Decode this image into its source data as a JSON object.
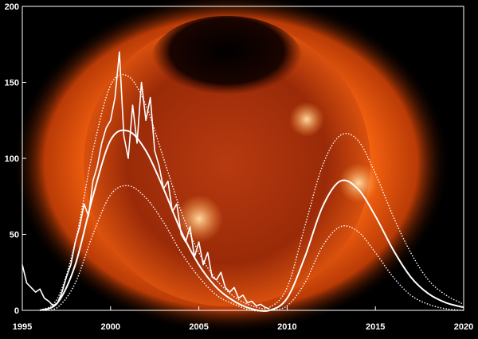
{
  "chart_data": {
    "type": "line",
    "xlim": [
      1995,
      2020
    ],
    "ylim": [
      0,
      200
    ],
    "xticks": [
      1995,
      2000,
      2005,
      2010,
      2015,
      2020
    ],
    "yticks": [
      0,
      50,
      100,
      150,
      200
    ],
    "series": [
      {
        "color": "#ffffff",
        "style": "solid",
        "smooth": false,
        "width": 1.6,
        "x": [
          1995,
          1995.25,
          1995.5,
          1995.75,
          1996,
          1996.25,
          1996.5,
          1996.75,
          1997,
          1997.25,
          1997.5,
          1997.75,
          1998,
          1998.25,
          1998.5,
          1998.75,
          1999,
          1999.25,
          1999.5,
          1999.75,
          2000,
          2000.25,
          2000.5,
          2000.75,
          2001,
          2001.25,
          2001.5,
          2001.75,
          2002,
          2002.25,
          2002.5,
          2002.75,
          2003,
          2003.25,
          2003.5,
          2003.75,
          2004,
          2004.25,
          2004.5,
          2004.75,
          2005,
          2005.25,
          2005.5,
          2005.75,
          2006,
          2006.25,
          2006.5,
          2006.75,
          2007,
          2007.25,
          2007.5,
          2007.75,
          2008,
          2008.25,
          2008.5,
          2008.75,
          2009
        ],
        "values": [
          30,
          18,
          15,
          12,
          14,
          8,
          6,
          3,
          5,
          12,
          22,
          30,
          45,
          55,
          70,
          62,
          85,
          95,
          110,
          120,
          125,
          140,
          170,
          115,
          100,
          135,
          110,
          150,
          125,
          140,
          105,
          95,
          80,
          85,
          65,
          70,
          50,
          45,
          55,
          35,
          45,
          30,
          38,
          22,
          20,
          25,
          15,
          12,
          15,
          8,
          10,
          5,
          6,
          3,
          4,
          2,
          1
        ]
      },
      {
        "color": "#ffffff",
        "style": "solid",
        "smooth": true,
        "width": 2,
        "x": [
          1996,
          1997,
          1998,
          1999,
          2000,
          2001,
          2002,
          2003,
          2004,
          2005,
          2006,
          2007,
          2008,
          2009,
          2010,
          2011,
          2012,
          2013,
          2014,
          2015,
          2016,
          2017,
          2018,
          2019,
          2020
        ],
        "values": [
          0,
          5,
          30,
          75,
          112,
          118,
          105,
          80,
          52,
          30,
          15,
          6,
          1,
          0,
          8,
          35,
          68,
          85,
          80,
          62,
          40,
          22,
          11,
          5,
          2
        ]
      },
      {
        "color": "#ffffff",
        "style": "dotted",
        "smooth": true,
        "width": 1.4,
        "x": [
          1996,
          1997,
          1998,
          1999,
          2000,
          2001,
          2002,
          2003,
          2004,
          2005,
          2006,
          2007,
          2008,
          2009,
          2010,
          2011,
          2012,
          2013,
          2014,
          2015,
          2016,
          2017,
          2018,
          2019,
          2020
        ],
        "values": [
          0,
          8,
          45,
          105,
          148,
          154,
          135,
          100,
          65,
          38,
          20,
          9,
          3,
          2,
          15,
          55,
          95,
          115,
          112,
          90,
          62,
          38,
          20,
          10,
          4
        ]
      },
      {
        "color": "#ffffff",
        "style": "dotted",
        "smooth": true,
        "width": 1.4,
        "x": [
          1996,
          1997,
          1998,
          1999,
          2000,
          2001,
          2002,
          2003,
          2004,
          2005,
          2006,
          2007,
          2008,
          2009,
          2010,
          2011,
          2012,
          2013,
          2014,
          2015,
          2016,
          2017,
          2018,
          2019,
          2020
        ],
        "values": [
          0,
          2,
          18,
          50,
          76,
          82,
          74,
          58,
          38,
          22,
          10,
          4,
          0,
          0,
          3,
          18,
          42,
          55,
          52,
          38,
          22,
          10,
          4,
          1,
          0
        ]
      }
    ]
  }
}
